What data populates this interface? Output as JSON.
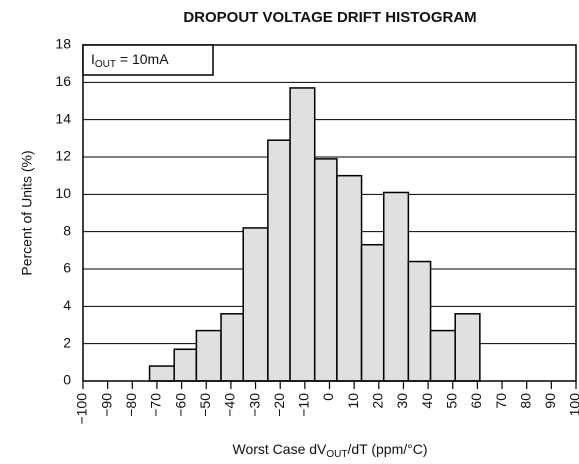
{
  "chart_data": {
    "type": "histogram",
    "title": "DROPOUT VOLTAGE DRIFT HISTOGRAM",
    "annotation": [
      "I",
      "OUT",
      " = 10mA"
    ],
    "xlabel": [
      "Worst Case dV",
      "OUT",
      "/dT (ppm/°C)"
    ],
    "ylabel": "Percent of Units (%)",
    "bins": [
      -73,
      -63,
      -54,
      -44,
      -35,
      -25,
      -16,
      -6,
      3,
      13,
      22,
      32,
      41,
      51,
      61
    ],
    "values": [
      0.8,
      1.7,
      2.7,
      3.6,
      8.2,
      12.9,
      15.7,
      11.9,
      11.0,
      7.3,
      10.1,
      6.4,
      2.7,
      3.6
    ],
    "color": "#e0e0e0",
    "xlim": [
      -100,
      100
    ],
    "xticks": [
      {
        "value": -100,
        "label": "−100"
      },
      {
        "value": -90,
        "label": "−90"
      },
      {
        "value": -80,
        "label": "−80"
      },
      {
        "value": -70,
        "label": "−70"
      },
      {
        "value": -60,
        "label": "−60"
      },
      {
        "value": -50,
        "label": "−50"
      },
      {
        "value": -40,
        "label": "−40"
      },
      {
        "value": -30,
        "label": "−30"
      },
      {
        "value": -20,
        "label": "−20"
      },
      {
        "value": -10,
        "label": "−10"
      },
      0,
      10,
      20,
      30,
      40,
      50,
      60,
      70,
      80,
      90,
      100
    ],
    "ylim": [
      0,
      18
    ],
    "yticks": [
      0,
      2,
      4,
      6,
      8,
      10,
      12,
      14,
      16,
      18
    ],
    "grid": true
  }
}
